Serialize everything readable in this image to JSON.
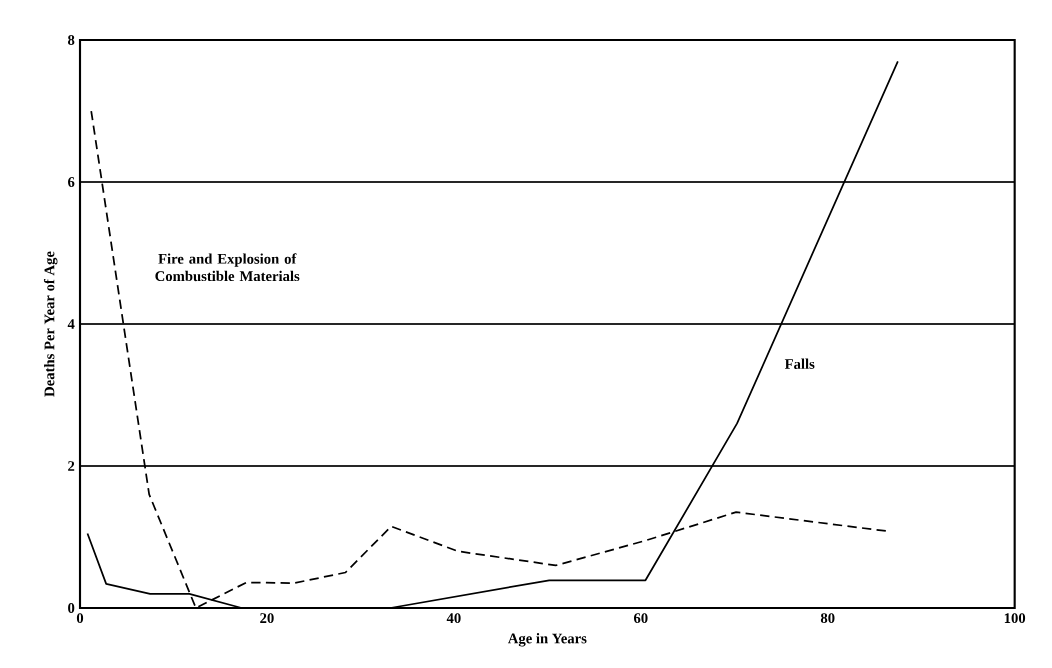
{
  "chart_data": {
    "type": "line",
    "xlabel": "Age in Years",
    "ylabel": "Deaths Per Year of Age",
    "xlim": [
      0,
      100
    ],
    "ylim": [
      0,
      8
    ],
    "xticks": [
      0,
      20,
      40,
      60,
      80,
      100
    ],
    "yticks": [
      0,
      2,
      4,
      6,
      8
    ],
    "grid": "y",
    "legend": false,
    "marker": "none",
    "series": [
      {
        "name": "Fire and Explosion of Combustible Materials",
        "color": "#000000",
        "line_style": "dashed",
        "x": [
          1.2,
          7.4,
          12.4,
          17.8,
          22.9,
          28.4,
          33.3,
          40.4,
          50.9,
          60.5,
          70.2,
          86.5
        ],
        "values": [
          7.0,
          1.6,
          0,
          0.36,
          0.35,
          0.5,
          1.15,
          0.8,
          0.6,
          0.95,
          1.35,
          1.08
        ]
      },
      {
        "name": "Falls",
        "color": "#000000",
        "line_style": "solid",
        "x": [
          0.8,
          2.8,
          7.5,
          11.7,
          17.3,
          33.2,
          50.2,
          60.5,
          70.3,
          87.5
        ],
        "values": [
          1.05,
          0.34,
          0.2,
          0.2,
          0,
          0,
          0.39,
          0.39,
          2.6,
          7.7
        ]
      }
    ]
  }
}
